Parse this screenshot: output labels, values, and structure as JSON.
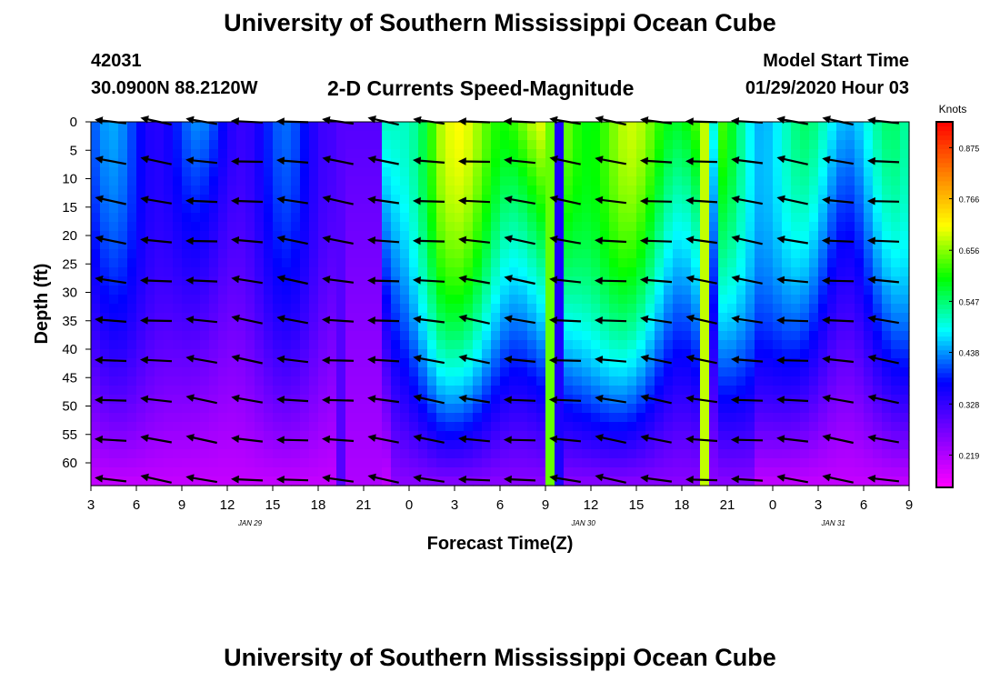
{
  "page_title": "University of Southern Mississippi Ocean Cube",
  "footer_title": "University of Southern Mississippi Ocean Cube",
  "station": {
    "id": "42031",
    "location": "30.0900N 88.2120W"
  },
  "plot_title": "2-D Currents Speed-Magnitude",
  "model": {
    "label": "Model Start Time",
    "value": "01/29/2020 Hour 03"
  },
  "colorbar": {
    "unit": "Knots",
    "range": [
      0.15,
      0.93
    ],
    "tick_values": [
      0.875,
      0.766,
      0.656,
      0.547,
      0.438,
      0.328,
      0.219
    ],
    "tick_labels": [
      "0.875",
      "0.766",
      "0.656",
      "0.547",
      "0.438",
      "0.328",
      "0.219"
    ],
    "colors": [
      "#ff00ff",
      "#8000ff",
      "#0000ff",
      "#00ffff",
      "#00ff00",
      "#ffff00",
      "#ff8000",
      "#ff0000"
    ]
  },
  "chart_data": {
    "type": "heatmap",
    "title": "2-D Currents Speed-Magnitude",
    "xlabel": "Forecast Time(Z)",
    "ylabel": "Depth (ft)",
    "x_range_hours": [
      0,
      54
    ],
    "x_ticks": [
      "3",
      "6",
      "9",
      "12",
      "15",
      "18",
      "21",
      "0",
      "3",
      "6",
      "9",
      "12",
      "15",
      "18",
      "21",
      "0",
      "3",
      "6",
      "9"
    ],
    "x_tick_hours": [
      0,
      3,
      6,
      9,
      12,
      15,
      18,
      21,
      24,
      27,
      30,
      33,
      36,
      39,
      42,
      45,
      48,
      51,
      54
    ],
    "date_labels": [
      {
        "text": "JAN 29",
        "hour": 10.5
      },
      {
        "text": "JAN 30",
        "hour": 32.5
      },
      {
        "text": "JAN 31",
        "hour": 49
      }
    ],
    "y_range_ft": [
      0,
      64
    ],
    "y_ticks": [
      "0",
      "5",
      "10",
      "15",
      "20",
      "25",
      "30",
      "35",
      "40",
      "45",
      "50",
      "55",
      "60"
    ],
    "y_tick_values": [
      0,
      5,
      10,
      15,
      20,
      25,
      30,
      35,
      40,
      45,
      50,
      55,
      60
    ],
    "speed_knots_approx": {
      "surface_jan29": 0.4,
      "deep_jan29": 0.2,
      "surface_jan30_peak": 0.66,
      "deep_jan30": 0.25,
      "surface_jan31": 0.5,
      "deep_jan31": 0.2
    },
    "arrow_times_hours": [
      1.5,
      4.5,
      7.5,
      10.5,
      13.5,
      16.5,
      19.5,
      22.5,
      25.5,
      28.5,
      31.5,
      34.5,
      37.5,
      40.5,
      43.5,
      46.5,
      49.5,
      52.5
    ],
    "arrow_depths_ft": [
      0,
      7,
      14,
      21,
      28,
      35,
      42,
      49,
      56,
      63
    ],
    "arrow_direction": "predominantly westward (pointing left), slightly north"
  }
}
